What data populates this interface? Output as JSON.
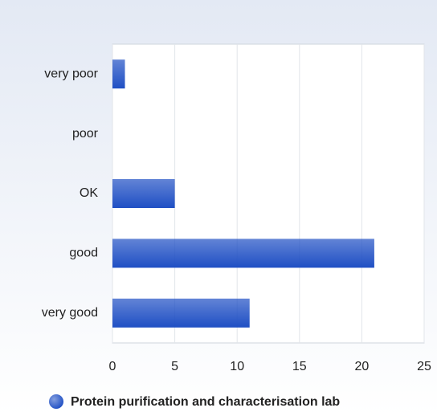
{
  "chart_data": {
    "type": "bar",
    "orientation": "horizontal",
    "categories": [
      "very poor",
      "poor",
      "OK",
      "good",
      "very good"
    ],
    "series": [
      {
        "name": "Protein purification and characterisation lab",
        "color": "#1f4fc4",
        "values": [
          1,
          0,
          5,
          21,
          11
        ]
      }
    ],
    "xlim": [
      0,
      25
    ],
    "xticks": [
      0,
      5,
      10,
      15,
      20,
      25
    ],
    "grid": true,
    "legend": "bottom"
  }
}
